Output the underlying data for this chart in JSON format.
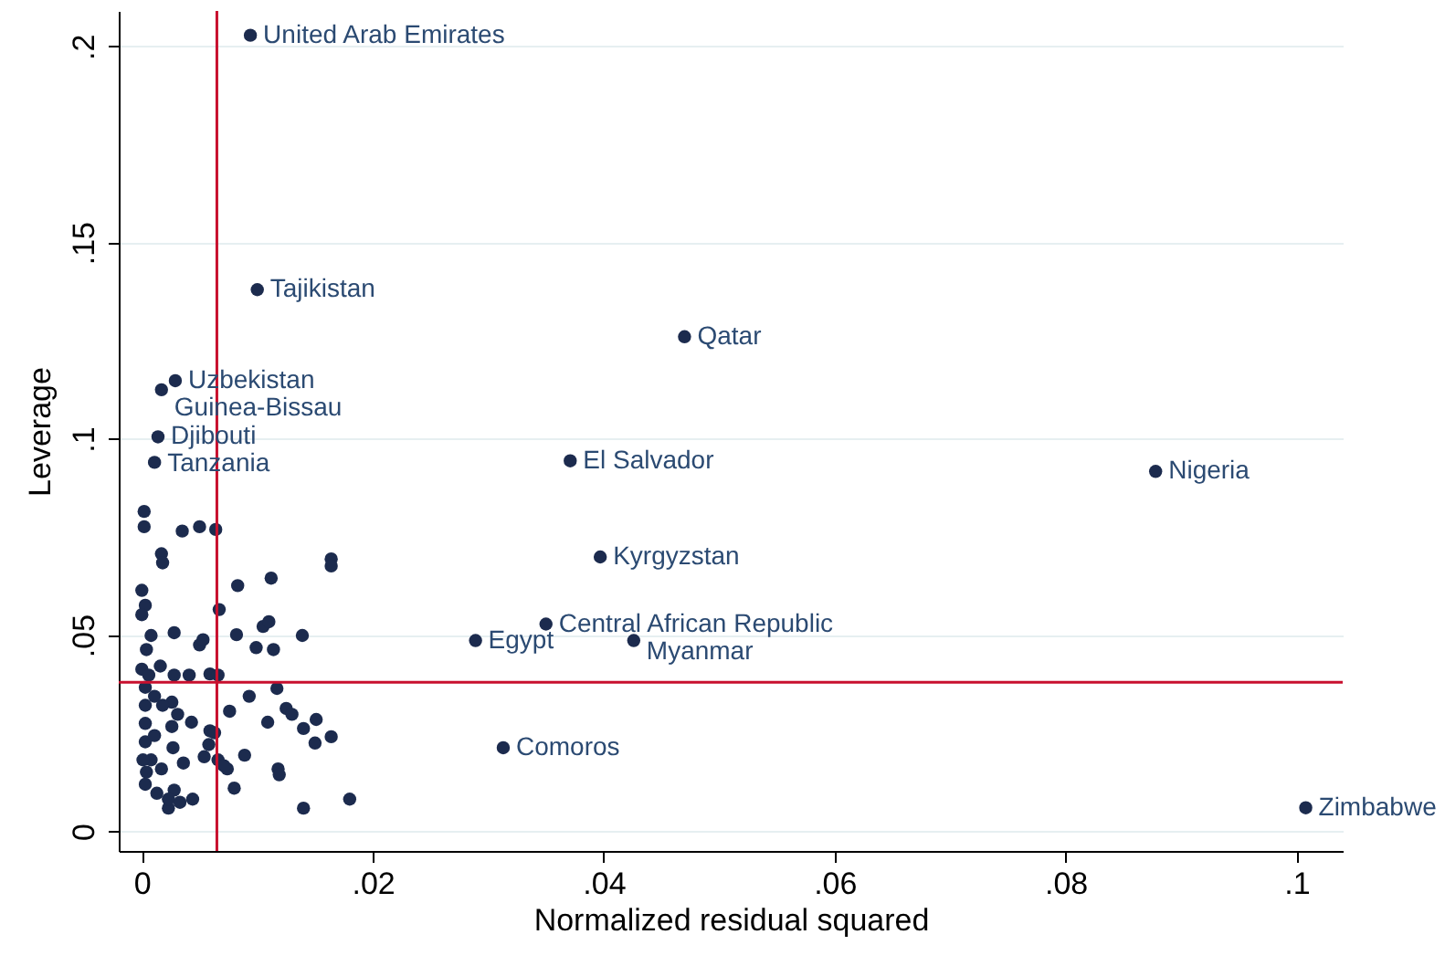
{
  "chart_data": {
    "type": "scatter",
    "xlabel": "Normalized residual squared",
    "ylabel": "Leverage",
    "marker": "circle",
    "grid": "y",
    "color": "#1c2b4e",
    "xlim": [
      -0.002,
      0.104
    ],
    "ylim": [
      -0.005,
      0.209
    ],
    "xticks": [
      0,
      {
        "value": 0.02,
        "label": ".02"
      },
      {
        "value": 0.04,
        "label": ".04"
      },
      {
        "value": 0.06,
        "label": ".06"
      },
      {
        "value": 0.08,
        "label": ".08"
      },
      {
        "value": 0.1,
        "label": ".1"
      }
    ],
    "yticks": [
      0,
      {
        "value": 0.05,
        "label": ".05"
      },
      {
        "value": 0.1,
        "label": ".1"
      },
      {
        "value": 0.15,
        "label": ".15"
      },
      {
        "value": 0.2,
        "label": ".2"
      }
    ],
    "x": [
      0.0094,
      0.01,
      0.047,
      0.0029,
      0.0017,
      0.0014,
      0.0011,
      0.0371,
      0.0878,
      0.0397,
      0.035,
      0.0289,
      0.0426,
      0.0313,
      0.1008,
      0.0002,
      0.0002,
      0.0035,
      0.005,
      0.0064,
      0.0017,
      0.0018,
      0.0164,
      0.0164,
      0.0083,
      0.0112,
      0.0,
      0.0003,
      0.0,
      0.0067,
      0.0082,
      0.0105,
      0.011,
      0.0139,
      0.0028,
      0.005,
      0.0053,
      0.0008,
      0.0004,
      0.0099,
      0.0114,
      0.0,
      0.0016,
      0.0028,
      0.0041,
      0.0059,
      0.0066,
      0.0117,
      0.0093,
      0.0076,
      0.0125,
      0.013,
      0.0109,
      0.014,
      0.0151,
      0.0164,
      0.015,
      0.0043,
      0.0026,
      0.0031,
      0.0026,
      0.0018,
      0.0089,
      0.0059,
      0.0063,
      0.0058,
      0.0054,
      0.0066,
      0.0074,
      0.0071,
      0.0118,
      0.0119,
      0.008,
      0.0027,
      0.0036,
      0.0017,
      0.014,
      0.018,
      0.0044,
      0.0028,
      0.0023,
      0.0003,
      0.0013,
      0.0008,
      0.0003,
      0.0003,
      0.0003,
      0.0003,
      0.0001,
      0.0006,
      0.0011,
      0.0011,
      0.0004,
      0.0023,
      0.0033
    ],
    "values": [
      0.2028,
      0.138,
      0.126,
      0.1148,
      0.1125,
      0.1005,
      0.094,
      0.0944,
      0.0917,
      0.0699,
      0.0528,
      0.0486,
      0.0486,
      0.0213,
      0.006,
      0.0815,
      0.0776,
      0.0765,
      0.0776,
      0.0769,
      0.0707,
      0.0684,
      0.0694,
      0.0676,
      0.0626,
      0.0645,
      0.0614,
      0.0576,
      0.0552,
      0.0565,
      0.0501,
      0.0522,
      0.0534,
      0.0499,
      0.0506,
      0.0475,
      0.0488,
      0.0499,
      0.0463,
      0.0468,
      0.0463,
      0.0413,
      0.0421,
      0.0398,
      0.0398,
      0.0401,
      0.0398,
      0.0364,
      0.0344,
      0.0306,
      0.0313,
      0.0298,
      0.0278,
      0.0262,
      0.0285,
      0.0241,
      0.0225,
      0.0278,
      0.0329,
      0.0298,
      0.0267,
      0.0321,
      0.0194,
      0.0256,
      0.0251,
      0.0221,
      0.019,
      0.0182,
      0.0159,
      0.0167,
      0.0159,
      0.0144,
      0.011,
      0.0213,
      0.0174,
      0.0159,
      0.0059,
      0.0082,
      0.0082,
      0.0105,
      0.0059,
      0.012,
      0.0097,
      0.0182,
      0.0367,
      0.0321,
      0.0275,
      0.0228,
      0.0182,
      0.0398,
      0.0344,
      0.0244,
      0.0151,
      0.0082,
      0.0074
    ],
    "annotations": [
      {
        "text": "United Arab Emirates",
        "x": 0.0094,
        "y": 0.2028
      },
      {
        "text": "Tajikistan",
        "x": 0.01,
        "y": 0.138
      },
      {
        "text": "Qatar",
        "x": 0.047,
        "y": 0.126
      },
      {
        "text": "Uzbekistan",
        "x": 0.0029,
        "y": 0.1148
      },
      {
        "text": "Guinea-Bissau",
        "x": 0.0017,
        "y": 0.1125
      },
      {
        "text": "Djibouti",
        "x": 0.0014,
        "y": 0.1005
      },
      {
        "text": "Tanzania",
        "x": 0.0011,
        "y": 0.094
      },
      {
        "text": "El Salvador",
        "x": 0.0371,
        "y": 0.0944
      },
      {
        "text": "Nigeria",
        "x": 0.0878,
        "y": 0.0917
      },
      {
        "text": "Kyrgyzstan",
        "x": 0.0397,
        "y": 0.0699
      },
      {
        "text": "Central African Republic",
        "x": 0.035,
        "y": 0.0528
      },
      {
        "text": "Egypt",
        "x": 0.0289,
        "y": 0.0486
      },
      {
        "text": "Myanmar",
        "x": 0.0426,
        "y": 0.0486
      },
      {
        "text": "Comoros",
        "x": 0.0313,
        "y": 0.0213
      },
      {
        "text": "Zimbabwe",
        "x": 0.1008,
        "y": 0.006
      }
    ],
    "ref_lines": [
      {
        "axis": "x",
        "value": 0.0065,
        "color": "#c8102e"
      },
      {
        "axis": "y",
        "value": 0.038,
        "color": "#c8102e"
      }
    ]
  }
}
